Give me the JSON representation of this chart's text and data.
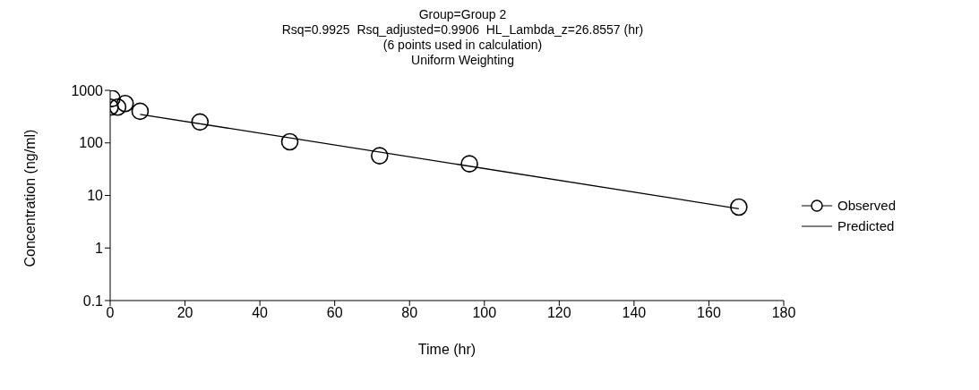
{
  "chart_data": {
    "type": "scatter",
    "title": "Group=Group 2",
    "subtitle": "Rsq=0.9925  Rsq_adjusted=0.9906  HL_Lambda_z=26.8557 (hr)\n(6 points used in calculation)\nUniform Weighting",
    "xlabel": "Time (hr)",
    "ylabel": "Concentration (ng/ml)",
    "log": "y",
    "xlim": [
      0,
      180
    ],
    "xticks": [
      0,
      20,
      40,
      60,
      80,
      100,
      120,
      140,
      160,
      180
    ],
    "ylim": [
      0.1,
      1000
    ],
    "yticks": [
      0.1,
      1,
      10,
      100,
      1000
    ],
    "grid": false,
    "legend": "right",
    "series": [
      {
        "name": "Observed",
        "type": "scatter",
        "marker": "circle",
        "color": "#000000",
        "x": [
          0,
          0.5,
          2,
          4,
          8,
          24,
          48,
          72,
          96,
          168
        ],
        "values": [
          480,
          700,
          480,
          560,
          400,
          250,
          105,
          57,
          40,
          6
        ]
      },
      {
        "name": "Predicted",
        "type": "line",
        "marker": "none",
        "color": "#000000",
        "x": [
          8,
          168
        ],
        "values": [
          350,
          5.6
        ]
      }
    ]
  }
}
